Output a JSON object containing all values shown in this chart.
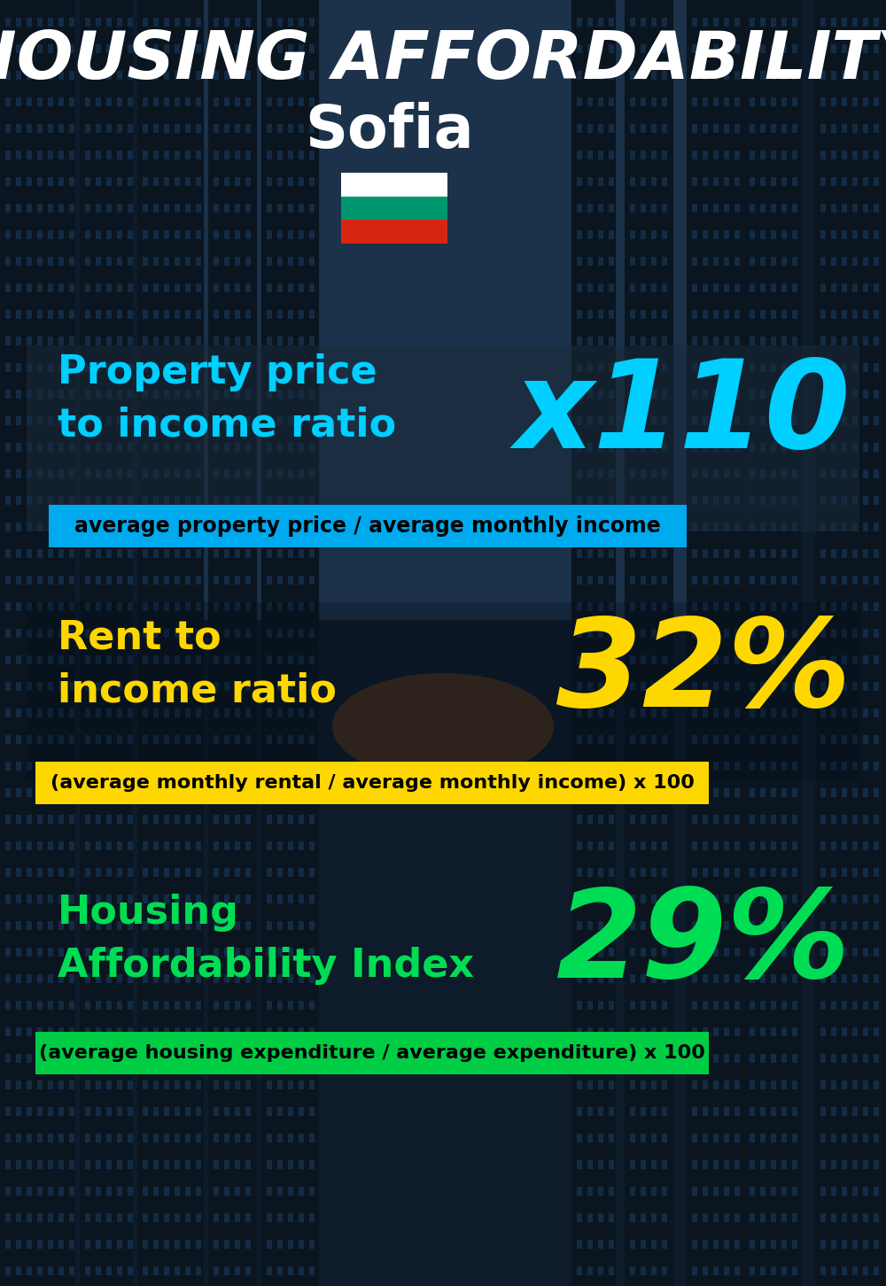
{
  "title_line1": "HOUSING AFFORDABILITY",
  "title_line2": "Sofia",
  "background_color": "#0d1b2a",
  "title1_color": "#ffffff",
  "title2_color": "#ffffff",
  "metric1_label": "Property price\nto income ratio",
  "metric1_value": "x110",
  "metric1_label_color": "#00cfff",
  "metric1_value_color": "#00cfff",
  "metric1_banner_text": "average property price / average monthly income",
  "metric1_banner_bg": "#00aaee",
  "metric1_banner_text_color": "#000000",
  "metric2_label": "Rent to\nincome ratio",
  "metric2_value": "32%",
  "metric2_label_color": "#ffd700",
  "metric2_value_color": "#ffd700",
  "metric2_banner_text": "(average monthly rental / average monthly income) x 100",
  "metric2_banner_bg": "#ffd700",
  "metric2_banner_text_color": "#000000",
  "metric3_label": "Housing\nAffordability Index",
  "metric3_value": "29%",
  "metric3_label_color": "#00dd55",
  "metric3_value_color": "#00dd55",
  "metric3_banner_text": "(average housing expenditure / average expenditure) x 100",
  "metric3_banner_bg": "#00cc44",
  "metric3_banner_text_color": "#000000",
  "flag_colors": [
    "#ffffff",
    "#00966E",
    "#D62612"
  ],
  "fig_width": 10.0,
  "fig_height": 14.52
}
